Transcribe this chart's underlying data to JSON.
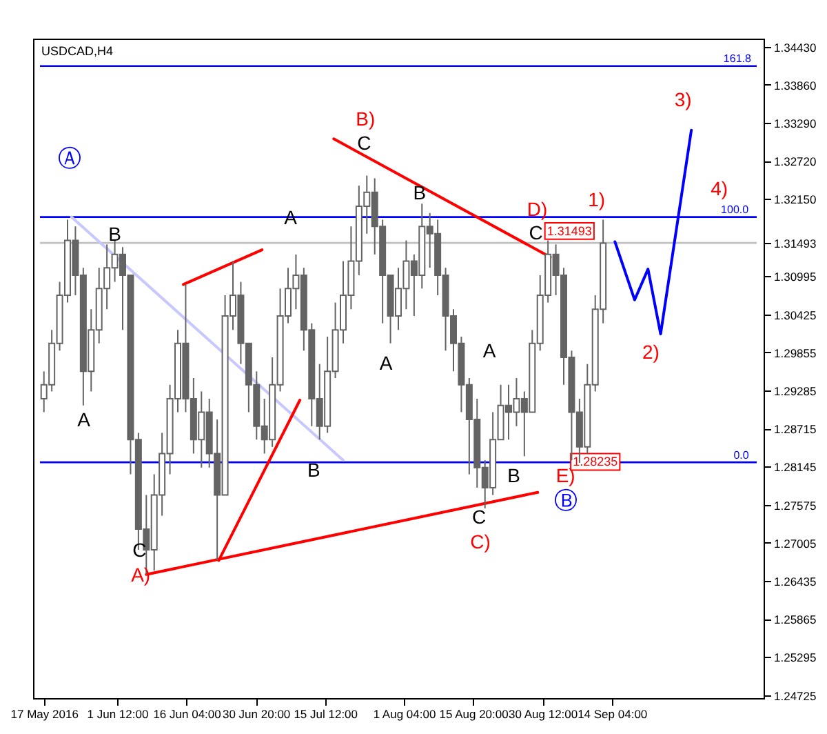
{
  "chart_data": {
    "type": "candlestick",
    "title": "USDCAD,H4",
    "color": "#646464",
    "x": [
      "2016-05-17T00:00",
      "2016-05-18T16:00",
      "2016-05-20T08:00",
      "2016-05-22T00:00",
      "2016-05-23T16:00",
      "2016-05-25T08:00",
      "2016-05-27T00:00",
      "2016-05-28T16:00",
      "2016-05-30T08:00",
      "2016-06-01T00:00",
      "2016-06-02T16:00",
      "2016-06-04T08:00",
      "2016-06-06T00:00",
      "2016-06-07T16:00",
      "2016-06-09T08:00",
      "2016-06-11T00:00",
      "2016-06-12T16:00",
      "2016-06-14T08:00",
      "2016-06-16T00:00",
      "2016-06-17T16:00",
      "2016-06-19T08:00",
      "2016-06-21T00:00",
      "2016-06-22T16:00",
      "2016-06-24T08:00",
      "2016-06-26T00:00",
      "2016-06-27T16:00",
      "2016-06-29T08:00",
      "2016-07-01T00:00",
      "2016-07-02T16:00",
      "2016-07-04T08:00",
      "2016-07-06T00:00",
      "2016-07-07T16:00",
      "2016-07-09T08:00",
      "2016-07-11T00:00",
      "2016-07-12T16:00",
      "2016-07-14T08:00",
      "2016-07-16T00:00",
      "2016-07-17T16:00",
      "2016-07-19T08:00",
      "2016-07-21T00:00",
      "2016-07-22T16:00",
      "2016-07-24T08:00",
      "2016-07-26T00:00",
      "2016-07-27T16:00",
      "2016-07-29T08:00",
      "2016-07-31T00:00",
      "2016-08-01T16:00",
      "2016-08-03T08:00",
      "2016-08-05T00:00",
      "2016-08-06T16:00",
      "2016-08-08T08:00",
      "2016-08-10T00:00",
      "2016-08-11T16:00",
      "2016-08-13T08:00",
      "2016-08-15T00:00",
      "2016-08-16T16:00",
      "2016-08-18T08:00",
      "2016-08-20T00:00",
      "2016-08-21T16:00",
      "2016-08-23T08:00",
      "2016-08-25T00:00",
      "2016-08-26T16:00",
      "2016-08-28T08:00",
      "2016-08-30T00:00",
      "2016-08-31T16:00",
      "2016-09-02T08:00",
      "2016-09-04T00:00",
      "2016-09-05T16:00",
      "2016-09-07T08:00",
      "2016-09-09T00:00",
      "2016-09-10T16:00",
      "2016-09-12T08:00"
    ],
    "ohlc": [
      [
        1.2916,
        1.2957,
        1.2896,
        1.2937
      ],
      [
        1.2937,
        1.3019,
        1.2927,
        1.2999
      ],
      [
        1.2999,
        1.3091,
        1.2988,
        1.3071
      ],
      [
        1.3071,
        1.3184,
        1.306,
        1.3153
      ],
      [
        1.3153,
        1.3174,
        1.3071,
        1.3101
      ],
      [
        1.3101,
        1.3112,
        1.2906,
        1.2957
      ],
      [
        1.2957,
        1.305,
        1.2927,
        1.3019
      ],
      [
        1.3019,
        1.3112,
        1.2999,
        1.3081
      ],
      [
        1.3081,
        1.3147,
        1.305,
        1.3112
      ],
      [
        1.3112,
        1.3153,
        1.3091,
        1.3132
      ],
      [
        1.3132,
        1.3143,
        1.3019,
        1.3101
      ],
      [
        1.3101,
        1.3101,
        1.2803,
        1.2855
      ],
      [
        1.2855,
        1.2865,
        1.269,
        1.2721
      ],
      [
        1.2721,
        1.2772,
        1.2653,
        1.269
      ],
      [
        1.269,
        1.2803,
        1.2659,
        1.2772
      ],
      [
        1.2772,
        1.2865,
        1.2741,
        1.2834
      ],
      [
        1.2834,
        1.2937,
        1.2803,
        1.2916
      ],
      [
        1.2916,
        1.3019,
        1.2896,
        1.2999
      ],
      [
        1.2999,
        1.3087,
        1.2896,
        1.2916
      ],
      [
        1.2916,
        1.2947,
        1.2834,
        1.2855
      ],
      [
        1.2855,
        1.2927,
        1.2813,
        1.2896
      ],
      [
        1.2896,
        1.2916,
        1.2813,
        1.2834
      ],
      [
        1.2834,
        1.2885,
        1.2674,
        1.2772
      ],
      [
        1.2772,
        1.3071,
        1.2772,
        1.304
      ],
      [
        1.304,
        1.3122,
        1.3019,
        1.3071
      ],
      [
        1.3071,
        1.3091,
        1.2968,
        1.2999
      ],
      [
        1.2999,
        1.2999,
        1.2896,
        1.2937
      ],
      [
        1.2937,
        1.2957,
        1.2855,
        1.2875
      ],
      [
        1.2875,
        1.2916,
        1.2834,
        1.2855
      ],
      [
        1.2855,
        1.2978,
        1.2844,
        1.2937
      ],
      [
        1.2937,
        1.3081,
        1.2927,
        1.304
      ],
      [
        1.304,
        1.3112,
        1.3029,
        1.3081
      ],
      [
        1.3081,
        1.3132,
        1.305,
        1.3101
      ],
      [
        1.3101,
        1.3112,
        1.2988,
        1.3019
      ],
      [
        1.3019,
        1.3029,
        1.2875,
        1.2916
      ],
      [
        1.2916,
        1.2968,
        1.2855,
        1.2875
      ],
      [
        1.2875,
        1.3009,
        1.2865,
        1.2957
      ],
      [
        1.2957,
        1.306,
        1.2947,
        1.3019
      ],
      [
        1.3019,
        1.3122,
        1.2999,
        1.3071
      ],
      [
        1.3071,
        1.3174,
        1.305,
        1.3122
      ],
      [
        1.3122,
        1.3235,
        1.3101,
        1.3204
      ],
      [
        1.3204,
        1.325,
        1.3163,
        1.3225
      ],
      [
        1.3225,
        1.3246,
        1.3132,
        1.3174
      ],
      [
        1.3174,
        1.3184,
        1.3029,
        1.3101
      ],
      [
        1.3101,
        1.3101,
        1.2999,
        1.304
      ],
      [
        1.304,
        1.3112,
        1.3019,
        1.3081
      ],
      [
        1.3081,
        1.3153,
        1.305,
        1.3122
      ],
      [
        1.3122,
        1.3132,
        1.304,
        1.3101
      ],
      [
        1.3101,
        1.3208,
        1.3081,
        1.3174
      ],
      [
        1.3174,
        1.3194,
        1.3112,
        1.3163
      ],
      [
        1.3163,
        1.3184,
        1.3071,
        1.3101
      ],
      [
        1.3101,
        1.3112,
        1.2988,
        1.304
      ],
      [
        1.304,
        1.305,
        1.2957,
        1.2999
      ],
      [
        1.2999,
        1.3009,
        1.2896,
        1.2937
      ],
      [
        1.2937,
        1.2947,
        1.2803,
        1.2885
      ],
      [
        1.2885,
        1.2916,
        1.2783,
        1.2813
      ],
      [
        1.2813,
        1.2824,
        1.2752,
        1.2783
      ],
      [
        1.2783,
        1.2896,
        1.2772,
        1.2855
      ],
      [
        1.2855,
        1.2937,
        1.2855,
        1.2906
      ],
      [
        1.2906,
        1.2937,
        1.2855,
        1.2896
      ],
      [
        1.2896,
        1.2947,
        1.2875,
        1.2916
      ],
      [
        1.2916,
        1.2927,
        1.283,
        1.2896
      ],
      [
        1.2896,
        1.3019,
        1.2896,
        1.2999
      ],
      [
        1.2999,
        1.3101,
        1.2988,
        1.3071
      ],
      [
        1.3071,
        1.3153,
        1.306,
        1.3132
      ],
      [
        1.3132,
        1.3147,
        1.3071,
        1.3101
      ],
      [
        1.3101,
        1.3112,
        1.2937,
        1.2978
      ],
      [
        1.2978,
        1.2988,
        1.2824,
        1.2896
      ],
      [
        1.2896,
        1.2916,
        1.282,
        1.2844
      ],
      [
        1.2844,
        1.2968,
        1.2834,
        1.2937
      ],
      [
        1.2937,
        1.3071,
        1.2927,
        1.305
      ],
      [
        1.305,
        1.3184,
        1.3029,
        1.3149
      ]
    ],
    "series": [
      {
        "type": "line",
        "color": "#c8c8ff",
        "x": [
          "2016-05-22T20:00",
          "2016-07-19T08:00"
        ],
        "values": [
          1.3188,
          1.2824
        ]
      },
      {
        "type": "line",
        "color": "#ff0000",
        "x": [
          "2016-07-17T08:00",
          "2016-09-01T04:00"
        ],
        "values": [
          1.3305,
          1.3128
        ]
      },
      {
        "type": "line",
        "color": "#ff0000",
        "x": [
          "2016-06-07T16:00",
          "2016-08-29T12:00"
        ],
        "values": [
          1.2653,
          1.2776
        ]
      },
      {
        "type": "line",
        "color": "#ff0000",
        "x": [
          "2016-06-15T12:00",
          "2016-07-02T04:00"
        ],
        "values": [
          1.3087,
          1.3139
        ]
      },
      {
        "type": "line",
        "color": "#ff0000",
        "x": [
          "2016-06-23T00:00",
          "2016-07-10T04:00"
        ],
        "values": [
          1.2674,
          1.2914
        ]
      },
      {
        "type": "line",
        "color": "#0000ff",
        "x": [
          "2016-09-14T20:00",
          "2016-09-19T00:00",
          "2016-09-21T20:00",
          "2016-09-24T12:00",
          "2016-10-01T00:00"
        ],
        "values": [
          1.3151,
          1.3064,
          1.311,
          1.3013,
          1.3318
        ]
      }
    ],
    "ref_lines": [
      {
        "axis": "y",
        "value": 1.3414,
        "color": "#0000ff"
      },
      {
        "axis": "y",
        "value": 1.3188,
        "color": "#0000ff"
      },
      {
        "axis": "y",
        "value": 1.2821,
        "color": "#0000ff"
      },
      {
        "axis": "y",
        "value": 1.31493,
        "color": "#c0c0c0"
      }
    ],
    "annotations": [
      "161.8",
      "100.0",
      "0.0",
      "Ⓐ",
      "A",
      "B",
      "C",
      "A)",
      "A",
      "B",
      "B)",
      "C",
      "B",
      "A",
      "A",
      "C",
      "C)",
      "B",
      "D)",
      "C",
      "E)",
      "Ⓑ",
      "1)",
      "2)",
      "3)",
      "4)",
      "1.31493",
      "1.28235"
    ],
    "xlim": [
      "2016-05-16T04:00",
      "2016-10-14T20:00"
    ],
    "xticks": [
      {
        "value": "2016-05-17T00:00",
        "label": "17 May 2016"
      },
      {
        "value": "2016-06-01T12:00",
        "label": "1 Jun 12:00"
      },
      {
        "value": "2016-06-16T04:00",
        "label": "16 Jun 04:00"
      },
      {
        "value": "2016-06-30T20:00",
        "label": "30 Jun 20:00"
      },
      {
        "value": "2016-07-15T12:00",
        "label": "15 Jul 12:00"
      },
      {
        "value": "2016-08-01T04:00",
        "label": "1 Aug 04:00"
      },
      {
        "value": "2016-08-15T20:00",
        "label": "15 Aug 20:00"
      },
      {
        "value": "2016-08-30T12:00",
        "label": "30 Aug 12:00"
      },
      {
        "value": "2016-09-14T04:00",
        "label": "14 Sep 04:00"
      }
    ],
    "ylim": [
      1.2468,
      1.3455
    ],
    "yticks": [
      {
        "value": 1.24725,
        "label": "1.24725"
      },
      {
        "value": 1.25295,
        "label": "1.25295"
      },
      {
        "value": 1.25865,
        "label": "1.25865"
      },
      {
        "value": 1.26435,
        "label": "1.26435"
      },
      {
        "value": 1.27005,
        "label": "1.27005"
      },
      {
        "value": 1.27575,
        "label": "1.27575"
      },
      {
        "value": 1.28145,
        "label": "1.28145"
      },
      {
        "value": 1.28715,
        "label": "1.28715"
      },
      {
        "value": 1.29285,
        "label": "1.29285"
      },
      {
        "value": 1.29855,
        "label": "1.29855"
      },
      {
        "value": 1.30425,
        "label": "1.30425"
      },
      {
        "value": 1.30995,
        "label": "1.30995"
      },
      {
        "value": 1.31493,
        "label": "1.31493"
      },
      {
        "value": 1.3215,
        "label": "1.32150"
      },
      {
        "value": 1.3272,
        "label": "1.32720"
      },
      {
        "value": 1.3329,
        "label": "1.33290"
      },
      {
        "value": 1.3386,
        "label": "1.33860"
      },
      {
        "value": 1.3443,
        "label": "1.34430"
      }
    ],
    "grid": false
  }
}
